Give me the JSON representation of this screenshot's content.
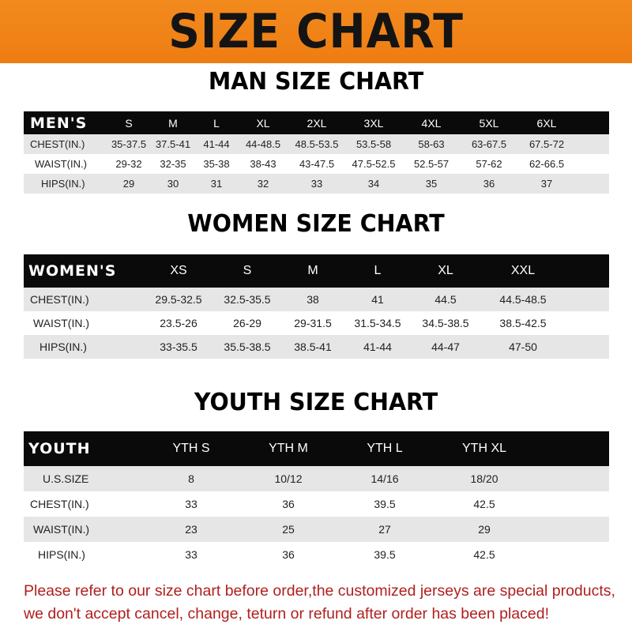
{
  "banner_title": "SIZE CHART",
  "men": {
    "title": "MAN SIZE CHART",
    "header": "MEN'S",
    "sizes": [
      "S",
      "M",
      "L",
      "XL",
      "2XL",
      "3XL",
      "4XL",
      "5XL",
      "6XL"
    ],
    "rows": [
      {
        "label": "CHEST(IN.)",
        "values": [
          "35-37.5",
          "37.5-41",
          "41-44",
          "44-48.5",
          "48.5-53.5",
          "53.5-58",
          "58-63",
          "63-67.5",
          "67.5-72"
        ]
      },
      {
        "label": "WAIST(IN.)",
        "values": [
          "29-32",
          "32-35",
          "35-38",
          "38-43",
          "43-47.5",
          "47.5-52.5",
          "52.5-57",
          "57-62",
          "62-66.5"
        ]
      },
      {
        "label": "HIPS(IN.)",
        "values": [
          "29",
          "30",
          "31",
          "32",
          "33",
          "34",
          "35",
          "36",
          "37"
        ]
      }
    ]
  },
  "women": {
    "title": "WOMEN SIZE CHART",
    "header": "WOMEN'S",
    "sizes": [
      "XS",
      "S",
      "M",
      "L",
      "XL",
      "XXL"
    ],
    "rows": [
      {
        "label": "CHEST(IN.)",
        "values": [
          "29.5-32.5",
          "32.5-35.5",
          "38",
          "41",
          "44.5",
          "44.5-48.5"
        ]
      },
      {
        "label": "WAIST(IN.)",
        "values": [
          "23.5-26",
          "26-29",
          "29-31.5",
          "31.5-34.5",
          "34.5-38.5",
          "38.5-42.5"
        ]
      },
      {
        "label": "HIPS(IN.)",
        "values": [
          "33-35.5",
          "35.5-38.5",
          "38.5-41",
          "41-44",
          "44-47",
          "47-50"
        ]
      }
    ]
  },
  "youth": {
    "title": "YOUTH SIZE CHART",
    "header": "YOUTH",
    "sizes": [
      "YTH S",
      "YTH M",
      "YTH L",
      "YTH XL"
    ],
    "rows": [
      {
        "label": "U.S.SIZE",
        "values": [
          "8",
          "10/12",
          "14/16",
          "18/20"
        ]
      },
      {
        "label": "CHEST(IN.)",
        "values": [
          "33",
          "36",
          "39.5",
          "42.5"
        ]
      },
      {
        "label": "WAIST(IN.)",
        "values": [
          "23",
          "25",
          "27",
          "29"
        ]
      },
      {
        "label": "HIPS(IN.)",
        "values": [
          "33",
          "36",
          "39.5",
          "42.5"
        ]
      }
    ]
  },
  "notice": [
    "Please refer to our size chart before order,the customized jerseys are special products,",
    "we don't accept cancel, change, teturn or refund after order has been placed!"
  ],
  "colors": {
    "banner": "#f08418",
    "header_row": "#0a0a0a",
    "notice": "#b0201e"
  }
}
